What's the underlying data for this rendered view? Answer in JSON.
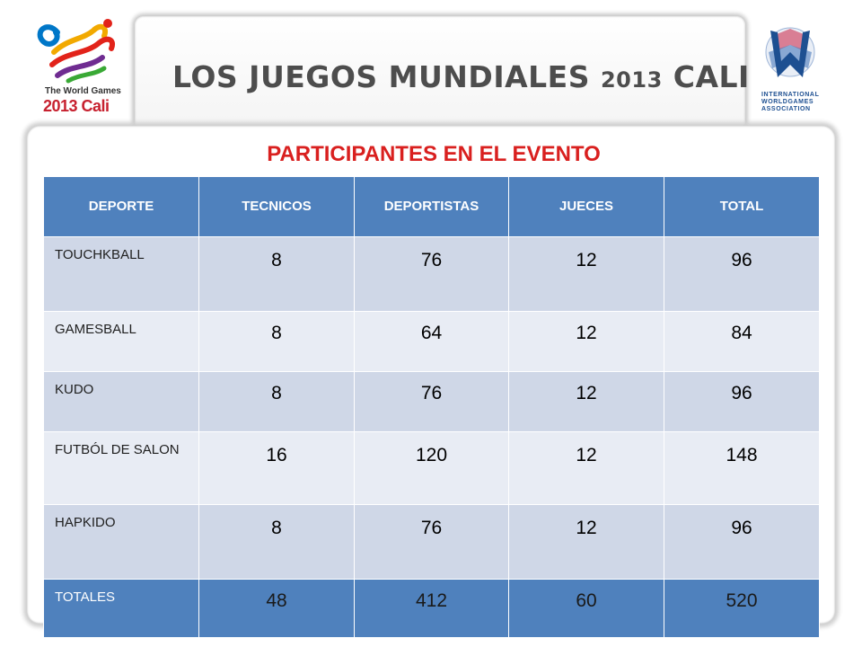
{
  "header": {
    "title_part1": "LOS JUEGOS MUNDIALES ",
    "title_year": "2013",
    "title_part2": " CALI"
  },
  "logo_left": {
    "line1": "The World Games",
    "line2": "2013 Cali"
  },
  "logo_right": {
    "line1": "INTERNATIONAL",
    "line2": "WORLDGAMES",
    "line3": "ASSOCIATION"
  },
  "section_title": "PARTICIPANTES  EN EL EVENTO",
  "table": {
    "headers": [
      "DEPORTE",
      "TECNICOS",
      "DEPORTISTAS",
      "JUECES",
      "TOTAL"
    ],
    "rows": [
      [
        "TOUCHKBALL",
        "8",
        "76",
        "12",
        "96"
      ],
      [
        "GAMESBALL",
        "8",
        "64",
        "12",
        "84"
      ],
      [
        "KUDO",
        "8",
        "76",
        "12",
        "96"
      ],
      [
        "FUTBÓL DE SALON",
        "16",
        "120",
        "12",
        "148"
      ],
      [
        "HAPKIDO",
        "8",
        "76",
        "12",
        "96"
      ]
    ],
    "totals": [
      "TOTALES",
      "48",
      "412",
      "60",
      "520"
    ]
  },
  "colors": {
    "header_blue": "#4f81bd",
    "row_dark": "#cfd7e7",
    "row_light": "#e8ecf4",
    "title_red": "#d9201f"
  }
}
